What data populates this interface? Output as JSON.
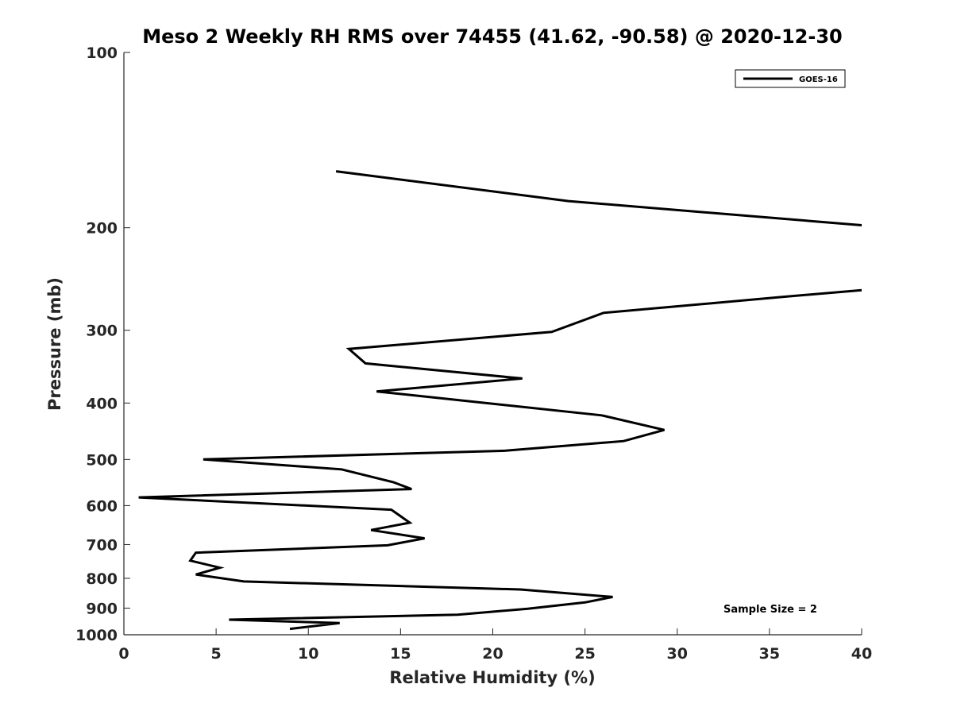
{
  "chart_data": {
    "type": "line",
    "title": "Meso 2 Weekly RH RMS over 74455 (41.62, -90.58) @ 2020-12-30",
    "xlabel": "Relative Humidity (%)",
    "ylabel": "Pressure (mb)",
    "xlim": [
      0,
      40
    ],
    "ylim": [
      1000,
      100
    ],
    "yscale": "log",
    "xticks": [
      0,
      5,
      10,
      15,
      20,
      25,
      30,
      35,
      40
    ],
    "xtick_labels": [
      "0",
      "5",
      "10",
      "15",
      "20",
      "25",
      "30",
      "35",
      "40"
    ],
    "yticks": [
      100,
      200,
      300,
      400,
      500,
      600,
      700,
      800,
      900,
      1000
    ],
    "ytick_labels": [
      "100",
      "200",
      "300",
      "400",
      "500",
      "600",
      "700",
      "800",
      "900",
      "1000"
    ],
    "grid": false,
    "legend_position": "top-right",
    "series": [
      {
        "name": "GOES-16",
        "color": "#000000",
        "segments": [
          {
            "x": [
              11.5,
              24.1,
              40.0
            ],
            "y": [
              160,
              180,
              198
            ]
          },
          {
            "x": [
              40.0,
              35.7,
              26.0,
              23.2,
              12.2,
              13.1,
              21.6,
              13.7,
              25.9,
              29.3,
              27.1,
              20.7,
              4.3,
              11.8,
              14.6,
              15.6,
              0.8,
              14.5,
              15.5,
              13.4,
              16.3,
              14.3,
              3.9,
              3.6,
              5.2,
              3.9,
              6.5,
              21.5,
              26.5,
              25.0,
              21.9,
              18.1,
              5.7,
              11.7,
              9.0
            ],
            "y": [
              256,
              263,
              280,
              302,
              323,
              342,
              363,
              382,
              420,
              445,
              465,
              483,
              500,
              520,
              547,
              562,
              581,
              610,
              642,
              661,
              683,
              702,
              723,
              746,
              767,
              788,
              810,
              836,
              861,
              880,
              902,
              924,
              942,
              955,
              977
            ]
          }
        ]
      }
    ],
    "annotations": [
      {
        "text": "Sample Size = 2",
        "x": 32.5,
        "y": 925
      }
    ]
  }
}
